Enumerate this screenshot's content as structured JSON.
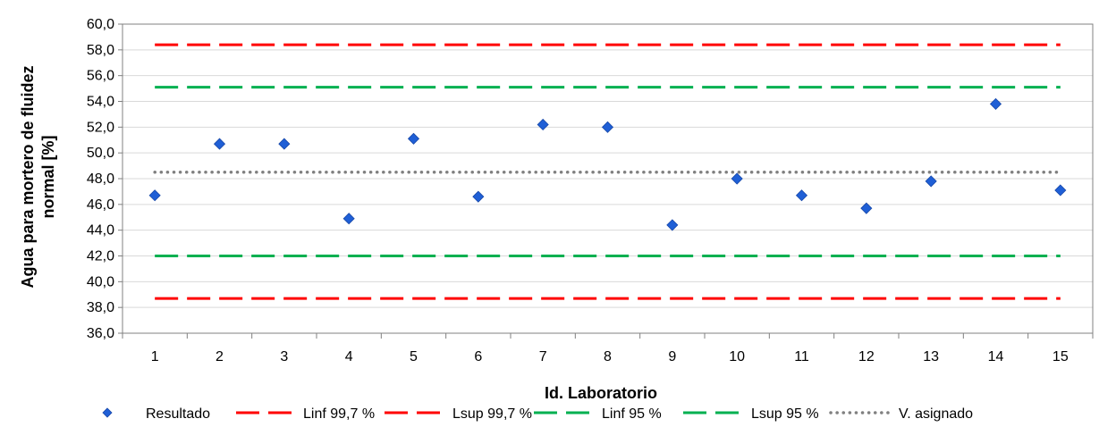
{
  "chart_data": {
    "type": "scatter",
    "xlabel": "Id. Laboratorio",
    "ylabel_line1": "Agua para mortero de fluidez",
    "ylabel_line2": "normal [%]",
    "ylim": [
      36,
      60
    ],
    "ystep": 2,
    "categories": [
      "1",
      "2",
      "3",
      "4",
      "5",
      "6",
      "7",
      "8",
      "9",
      "10",
      "11",
      "12",
      "13",
      "14",
      "15"
    ],
    "y_tick_labels": [
      "36,0",
      "38,0",
      "40,0",
      "42,0",
      "44,0",
      "46,0",
      "48,0",
      "50,0",
      "52,0",
      "54,0",
      "56,0",
      "58,0",
      "60,0"
    ],
    "series": [
      {
        "name": "Resultado",
        "style": "marker",
        "color": "#1f5fd6",
        "values": [
          46.7,
          50.7,
          50.7,
          44.9,
          51.1,
          46.6,
          52.2,
          52.0,
          44.4,
          48.0,
          46.7,
          45.7,
          47.8,
          53.8,
          47.1
        ]
      },
      {
        "name": "Linf 99,7 %",
        "style": "dash",
        "color": "#ff0000",
        "value": 38.7
      },
      {
        "name": "Lsup 99,7 %",
        "style": "dash",
        "color": "#ff0000",
        "value": 58.4
      },
      {
        "name": "Linf 95 %",
        "style": "dash",
        "color": "#00b050",
        "value": 42.0
      },
      {
        "name": "Lsup 95 %",
        "style": "dash",
        "color": "#00b050",
        "value": 55.1
      },
      {
        "name": "V. asignado",
        "style": "dot",
        "color": "#808080",
        "value": 48.5
      }
    ],
    "grid": true,
    "legend_position": "bottom"
  }
}
